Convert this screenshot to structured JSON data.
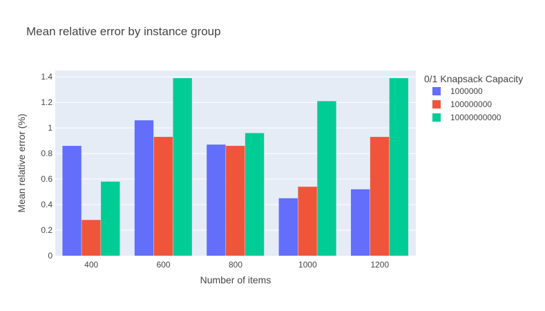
{
  "chart_data": {
    "type": "bar",
    "title": "Mean relative error by instance group",
    "xlabel": "Number of items",
    "ylabel": "Mean relative error (%)",
    "categories": [
      "400",
      "600",
      "800",
      "1000",
      "1200"
    ],
    "ylim": [
      0,
      1.45
    ],
    "yticks": [
      0,
      0.2,
      0.4,
      0.6,
      0.8,
      1,
      1.2,
      1.4
    ],
    "ytick_labels": [
      "0",
      "0.2",
      "0.4",
      "0.6",
      "0.8",
      "1",
      "1.2",
      "1.4"
    ],
    "grid": true,
    "legend": {
      "title": "0/1 Knapsack Capacity",
      "placement": "right"
    },
    "series": [
      {
        "name": "1000000",
        "color": "#636efa",
        "values": [
          0.86,
          1.06,
          0.87,
          0.45,
          0.52
        ]
      },
      {
        "name": "100000000",
        "color": "#ef553b",
        "values": [
          0.28,
          0.93,
          0.86,
          0.54,
          0.93
        ]
      },
      {
        "name": "10000000000",
        "color": "#00cc96",
        "values": [
          0.58,
          1.39,
          0.96,
          1.21,
          1.39
        ]
      }
    ]
  }
}
